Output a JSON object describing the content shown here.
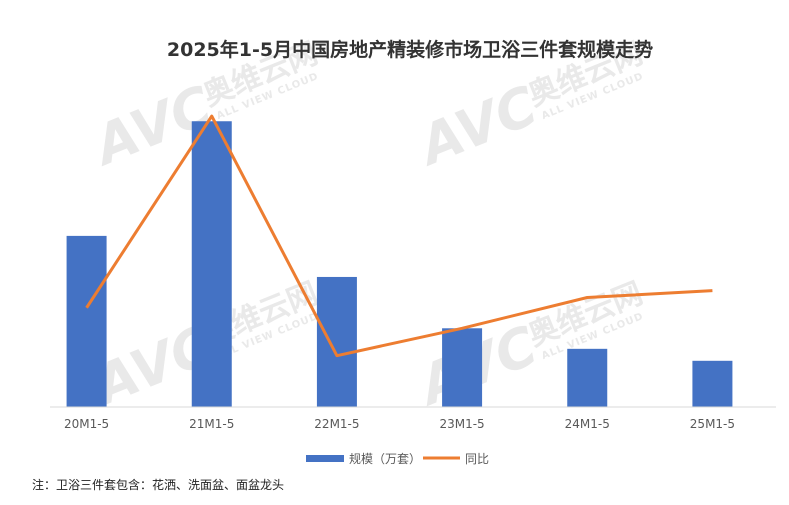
{
  "chart_data": {
    "type": "bar",
    "title": "2025年1-5月中国房地产精装修市场卫浴三件套规模走势",
    "categories": [
      "20M1-5",
      "21M1-5",
      "22M1-5",
      "23M1-5",
      "24M1-5",
      "25M1-5"
    ],
    "series": [
      {
        "name": "规模（万套）",
        "type": "bar",
        "values": [
          100,
          167,
          76,
          46,
          34,
          27
        ],
        "color": "#4472C4"
      },
      {
        "name": "同比",
        "type": "line",
        "values": [
          58,
          170,
          30,
          46,
          64,
          68
        ],
        "color": "#ED7D31"
      }
    ],
    "ylim": [
      0,
      180
    ],
    "grid": false,
    "legend_position": "bottom"
  },
  "watermark": {
    "logo_text": "AVC",
    "cn_text": "奥维云网",
    "sub_text": "ALL VIEW CLOUD"
  },
  "note": "注：卫浴三件套包含：花洒、洗面盆、面盆龙头"
}
